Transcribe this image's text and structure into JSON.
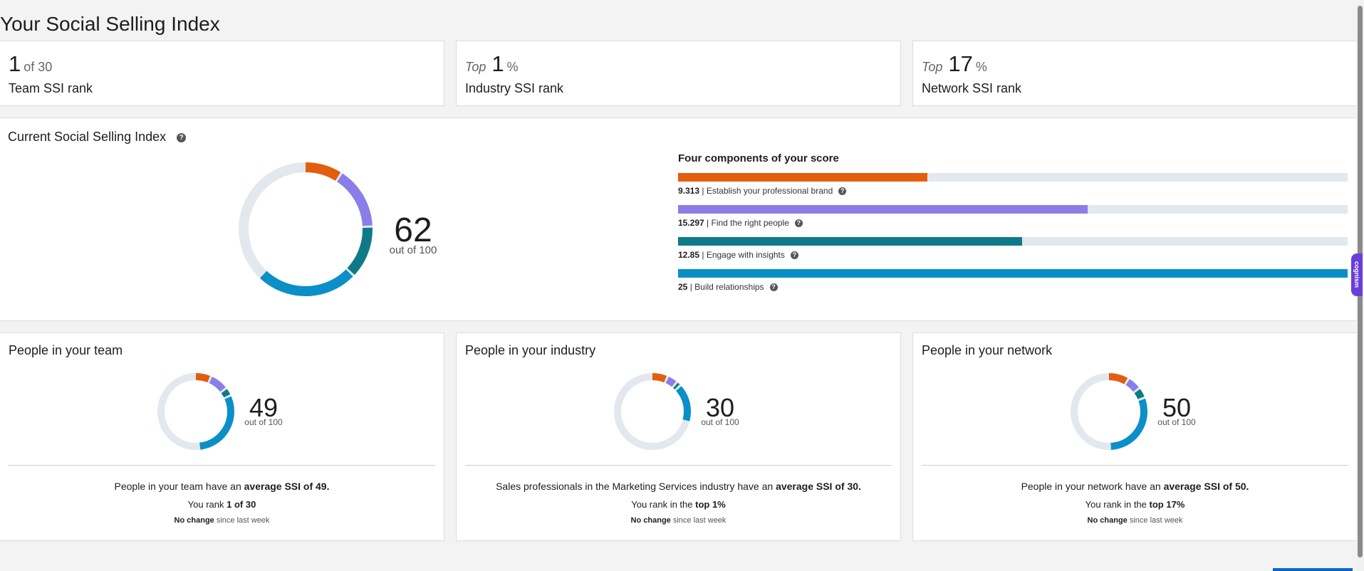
{
  "page": {
    "title": "Your Social Selling Index"
  },
  "ranks": [
    {
      "prefix": "",
      "value": "1",
      "suffix": "of 30",
      "label": "Team SSI rank"
    },
    {
      "prefix": "Top",
      "value": "1",
      "suffix": "%",
      "label": "Industry SSI rank"
    },
    {
      "prefix": "Top",
      "value": "17",
      "suffix": "%",
      "label": "Network SSI rank"
    }
  ],
  "current": {
    "title": "Current Social Selling Index",
    "score": "62",
    "out_of": "out of 100",
    "components_title": "Four components of your score"
  },
  "chart_data": {
    "type": "bar",
    "title": "Four components of your score",
    "categories": [
      "Establish your professional brand",
      "Find the right people",
      "Engage with insights",
      "Build relationships"
    ],
    "values": [
      9.313,
      15.297,
      12.85,
      25
    ],
    "ylim": [
      0,
      25
    ],
    "colors": [
      "#e35d0f",
      "#8b7ee8",
      "#0e7a87",
      "#0b8fc8"
    ],
    "labels": [
      "9.313",
      "15.297",
      "12.85",
      "25"
    ]
  },
  "icons": {
    "help": "question-circle-icon"
  },
  "groups": [
    {
      "title": "People in your team",
      "score": "49",
      "out_of": "out of 100",
      "segments": [
        7.0,
        8.0,
        3.5,
        30.5
      ],
      "desc_pre": "People in your team have an ",
      "desc_bold": "average SSI of 49.",
      "rank_pre": "You rank ",
      "rank_bold": "1 of 30",
      "change_bold": "No change",
      "change_rest": " since last week"
    },
    {
      "title": "People in your industry",
      "score": "30",
      "out_of": "out of 100",
      "segments": [
        7.0,
        4.5,
        2.0,
        16.5
      ],
      "desc_pre": "Sales professionals in the Marketing Services industry have an ",
      "desc_bold": "average SSI of 30.",
      "rank_pre": "You rank in the ",
      "rank_bold": "top 1%",
      "change_bold": "No change",
      "change_rest": " since last week"
    },
    {
      "title": "People in your network",
      "score": "50",
      "out_of": "out of 100",
      "segments": [
        9.0,
        6.0,
        4.5,
        30.5
      ],
      "desc_pre": "People in your network have an ",
      "desc_bold": "average SSI of 50.",
      "rank_pre": "You rank in the ",
      "rank_bold": "top 17%",
      "change_bold": "No change",
      "change_rest": " since last week"
    }
  ],
  "ui": {
    "cognism_label": "cognism"
  }
}
